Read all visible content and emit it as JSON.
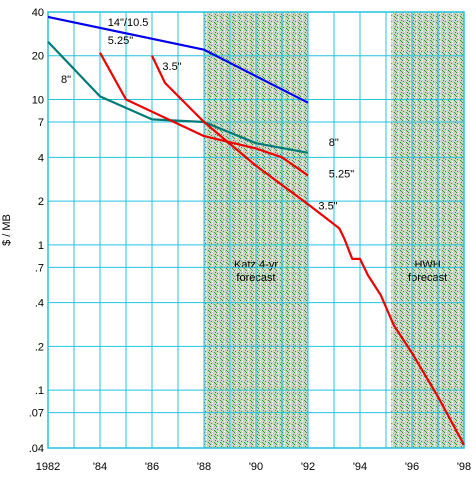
{
  "chart_data": {
    "type": "line",
    "title": "",
    "xlabel": "",
    "ylabel": "$ / MB",
    "y_scale": "log",
    "xlim": [
      1982,
      1998
    ],
    "ylim": [
      0.04,
      40
    ],
    "grid": true,
    "grid_color": "#22c4e0",
    "x_ticks": [
      {
        "v": 1982,
        "label": "1982"
      },
      {
        "v": 1984,
        "label": "'84"
      },
      {
        "v": 1986,
        "label": "'86"
      },
      {
        "v": 1988,
        "label": "'88"
      },
      {
        "v": 1990,
        "label": "'90"
      },
      {
        "v": 1992,
        "label": "'92"
      },
      {
        "v": 1994,
        "label": "'94"
      },
      {
        "v": 1996,
        "label": "'96"
      },
      {
        "v": 1998,
        "label": "'98"
      }
    ],
    "y_ticks": [
      {
        "v": 40,
        "label": "40"
      },
      {
        "v": 20,
        "label": "20"
      },
      {
        "v": 10,
        "label": "10"
      },
      {
        "v": 7,
        "label": "7"
      },
      {
        "v": 4,
        "label": "4"
      },
      {
        "v": 2,
        "label": "2"
      },
      {
        "v": 1,
        "label": "1"
      },
      {
        "v": 0.7,
        "label": ".7"
      },
      {
        "v": 0.4,
        "label": ".4"
      },
      {
        "v": 0.2,
        "label": ".2"
      },
      {
        "v": 0.1,
        "label": ".1"
      },
      {
        "v": 0.07,
        "label": ".07"
      },
      {
        "v": 0.04,
        "label": ".04"
      }
    ],
    "shaded_regions": [
      {
        "x0": 1988,
        "x1": 1992,
        "label_lines": [
          "Katz 4-yr",
          "forecast"
        ]
      },
      {
        "x0": 1995.2,
        "x1": 1998,
        "label_lines": [
          "HWH",
          "forecast"
        ]
      }
    ],
    "series": [
      {
        "name": "14\"/10.5",
        "color": "#0000ee",
        "points": [
          [
            1982,
            37
          ],
          [
            1988,
            22
          ],
          [
            1992,
            9.5
          ]
        ]
      },
      {
        "name": "8\"",
        "color": "#007a78",
        "points": [
          [
            1982,
            25
          ],
          [
            1984,
            10.5
          ],
          [
            1986,
            7.3
          ],
          [
            1988,
            7.0
          ],
          [
            1990,
            5.0
          ],
          [
            1992,
            4.3
          ]
        ]
      },
      {
        "name": "5.25\"",
        "color": "#ee0000",
        "points": [
          [
            1984,
            21
          ],
          [
            1985,
            10
          ],
          [
            1988,
            5.6
          ],
          [
            1990,
            4.6
          ],
          [
            1991,
            4.0
          ],
          [
            1992,
            3.0
          ]
        ]
      },
      {
        "name": "3.5\"",
        "color": "#ee0000",
        "points": [
          [
            1986,
            20
          ],
          [
            1986.5,
            13
          ],
          [
            1988,
            7.0
          ],
          [
            1990,
            3.5
          ],
          [
            1992,
            1.9
          ],
          [
            1993.2,
            1.3
          ],
          [
            1993.4,
            1.1
          ],
          [
            1993.7,
            0.8
          ],
          [
            1994,
            0.8
          ],
          [
            1994.3,
            0.62
          ],
          [
            1994.8,
            0.45
          ],
          [
            1995.3,
            0.28
          ],
          [
            1996,
            0.18
          ],
          [
            1997,
            0.09
          ],
          [
            1998,
            0.042
          ]
        ]
      }
    ],
    "annotations": [
      {
        "text": "14\"/10.5",
        "x": 1984.3,
        "y": 32
      },
      {
        "text": "8\"",
        "x": 1982.5,
        "y": 13
      },
      {
        "text": "5.25\"",
        "x": 1984.3,
        "y": 24
      },
      {
        "text": "3.5\"",
        "x": 1986.4,
        "y": 16
      },
      {
        "text": "8\"",
        "x": 1992.8,
        "y": 4.8
      },
      {
        "text": "5.25\"",
        "x": 1992.8,
        "y": 2.9
      },
      {
        "text": "3.5\"",
        "x": 1992.4,
        "y": 1.75
      }
    ]
  }
}
